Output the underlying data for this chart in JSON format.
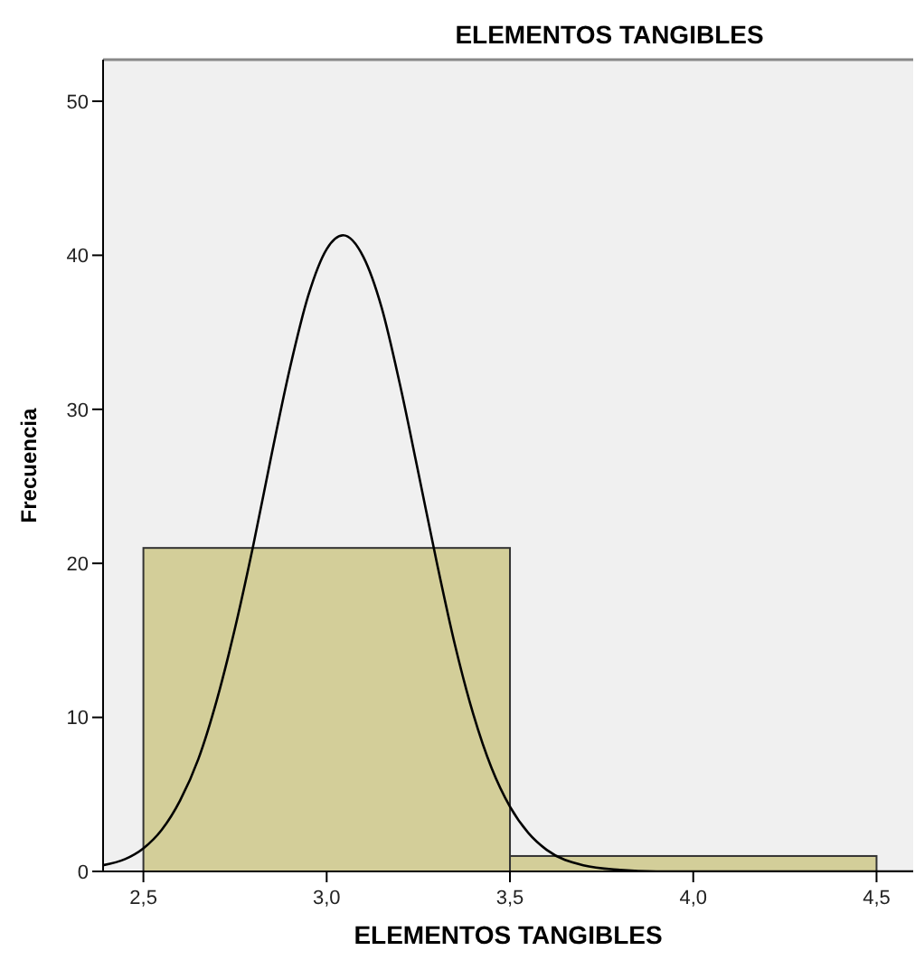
{
  "chart_data": {
    "type": "histogram",
    "title": "ELEMENTOS TANGIBLES",
    "xlabel": "ELEMENTOS TANGIBLES",
    "ylabel": "Frecuencia",
    "xlim": [
      2.39,
      4.6
    ],
    "xticks": [
      {
        "value": 2.5,
        "label": "2,5"
      },
      {
        "value": 3.0,
        "label": "3,0"
      },
      {
        "value": 3.5,
        "label": "3,5"
      },
      {
        "value": 4.0,
        "label": "4,0"
      },
      {
        "value": 4.5,
        "label": "4,5"
      }
    ],
    "ylim": [
      0,
      52.7
    ],
    "yticks": [
      0,
      10,
      20,
      30,
      40,
      50
    ],
    "series": [
      {
        "bins": [
          2.5,
          3.5,
          4.5
        ],
        "values": [
          21,
          1
        ],
        "color": "#d3ce99"
      },
      {
        "type": "line",
        "color": "#000000",
        "x": [
          2.39,
          2.45,
          2.5,
          2.55,
          2.6,
          2.65,
          2.7,
          2.75,
          2.8,
          2.85,
          2.9,
          2.95,
          3.0,
          3.045,
          3.1,
          3.15,
          3.2,
          3.25,
          3.3,
          3.35,
          3.4,
          3.45,
          3.5,
          3.55,
          3.6,
          3.7,
          3.8,
          3.9,
          4.0,
          4.2,
          4.6
        ],
        "values": [
          0.4,
          0.8,
          1.5,
          2.7,
          4.6,
          7.3,
          11.1,
          15.8,
          21.2,
          27.1,
          32.7,
          37.4,
          40.4,
          41.3,
          39.9,
          36.6,
          31.6,
          25.9,
          20.1,
          14.7,
          10.2,
          6.7,
          4.2,
          2.5,
          1.4,
          0.4,
          0.1,
          0,
          0,
          0,
          0
        ]
      }
    ]
  }
}
